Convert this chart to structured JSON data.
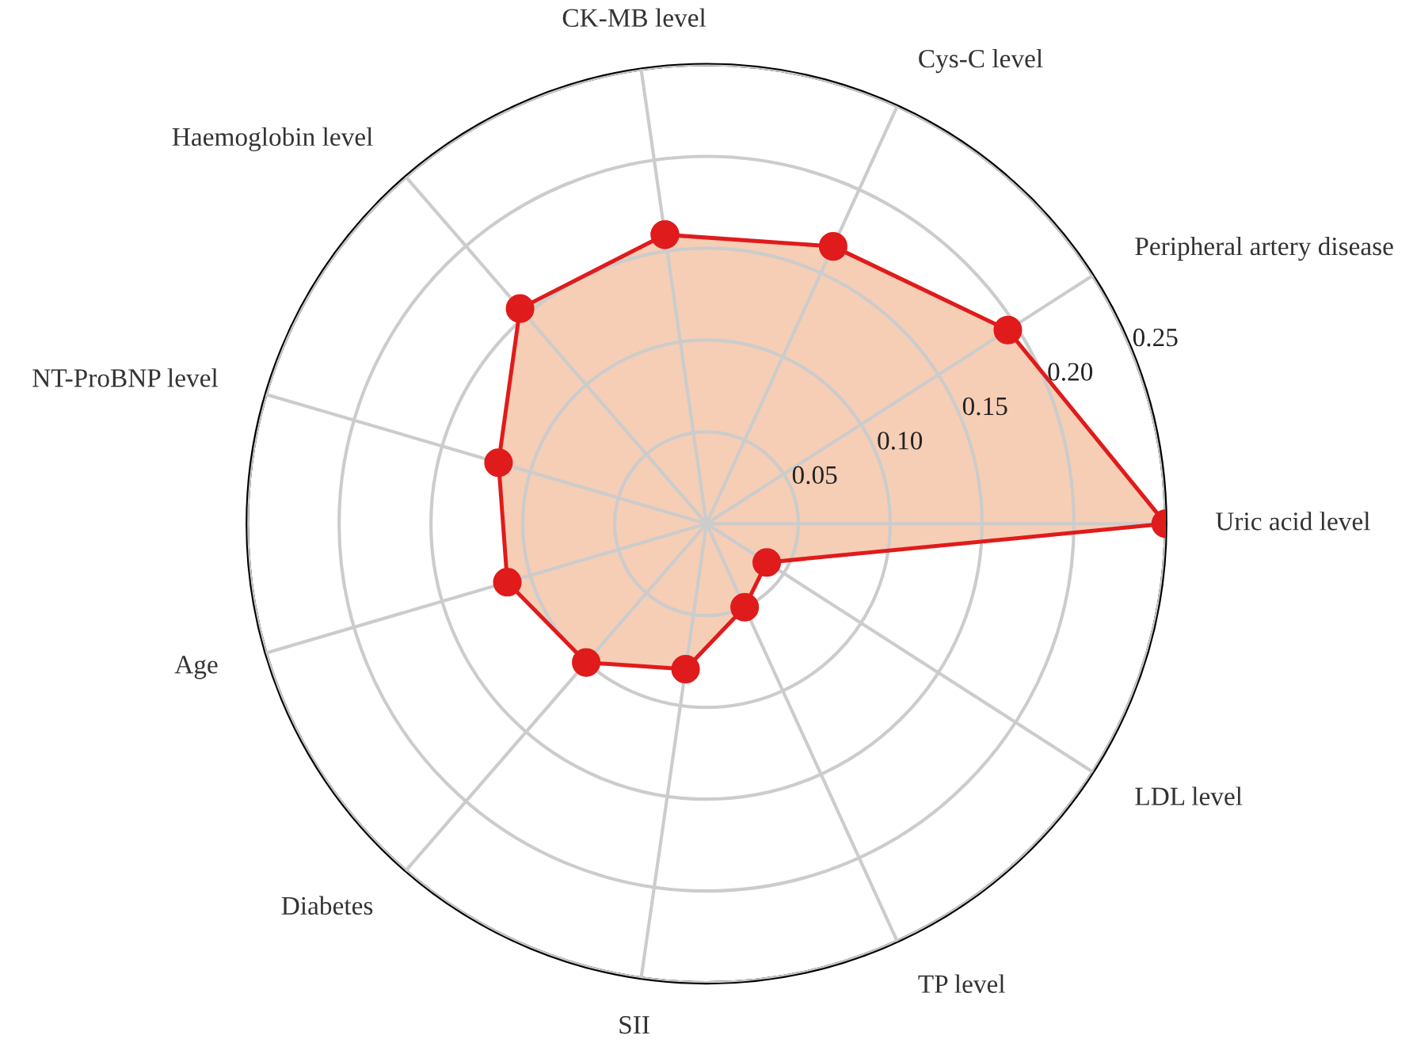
{
  "chart_data": {
    "type": "radar",
    "categories": [
      "CK-MB level",
      "Cys-C level",
      "Peripheral artery disease",
      "Uric acid level",
      "LDL level",
      "TP level",
      "SII",
      "Diabetes",
      "Age",
      "NT-ProBNP level",
      "Haemoglobin level"
    ],
    "series": [
      {
        "color": "#e01b1b",
        "values": [
          0.159,
          0.166,
          0.195,
          0.25,
          0.039,
          0.05,
          0.08,
          0.1,
          0.113,
          0.118,
          0.155
        ]
      }
    ],
    "ylim": [
      0,
      0.25
    ],
    "yticks": [
      {
        "value": 0.05,
        "label": "0.05"
      },
      {
        "value": 0.1,
        "label": "0.10"
      },
      {
        "value": 0.15,
        "label": "0.15"
      },
      {
        "value": 0.2,
        "label": "0.20"
      },
      {
        "value": 0.25,
        "label": "0.25"
      }
    ],
    "grid": true,
    "marker": "circle",
    "line_style": "solid"
  }
}
